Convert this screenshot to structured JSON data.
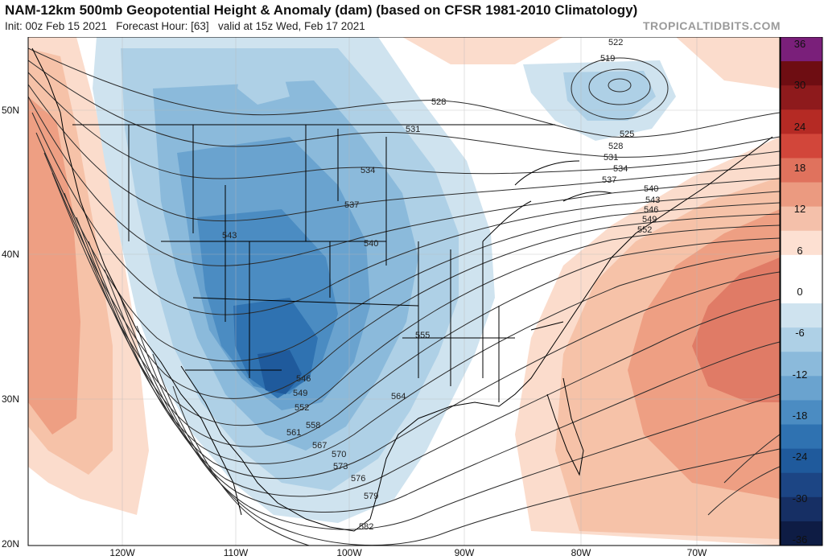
{
  "header": {
    "title": "NAM-12km 500mb Geopotential Height & Anomaly (dam) (based on CFSR 1981-2010 Climatology)",
    "init": "Init: 00z Feb 15 2021",
    "forecast_hour": "Forecast Hour: [63]",
    "valid": "valid at 15z Wed, Feb 17 2021",
    "credit": "TROPICALTIDBITS.COM"
  },
  "map": {
    "lat_labels": [
      "50N",
      "40N",
      "30N",
      "20N"
    ],
    "lon_labels": [
      "120W",
      "110W",
      "100W",
      "90W",
      "80W",
      "70W"
    ],
    "contour_labels": [
      "522",
      "519",
      "528",
      "525",
      "528",
      "531",
      "534",
      "537",
      "540",
      "543",
      "546",
      "549",
      "552",
      "531",
      "534",
      "537",
      "540",
      "543",
      "546",
      "549",
      "552",
      "555",
      "558",
      "561",
      "564",
      "567",
      "570",
      "573",
      "576",
      "579",
      "582"
    ]
  },
  "colorbar": {
    "labels": [
      "36",
      "30",
      "24",
      "18",
      "12",
      "6",
      "0",
      "-6",
      "-12",
      "-18",
      "-24",
      "-30",
      "-36"
    ],
    "colors": [
      "#7a1f7a",
      "#6e0d12",
      "#8e1a1c",
      "#b52a24",
      "#d2463a",
      "#e0725d",
      "#eb9a80",
      "#f4c0aa",
      "#fde0d2",
      "#ffffff",
      "#ffffff",
      "#cfe3ef",
      "#aed0e6",
      "#8bbadb",
      "#6aa3cf",
      "#4b8cc2",
      "#2f72b1",
      "#1f5a9c",
      "#1c4584",
      "#162f64",
      "#0e1c44"
    ]
  }
}
